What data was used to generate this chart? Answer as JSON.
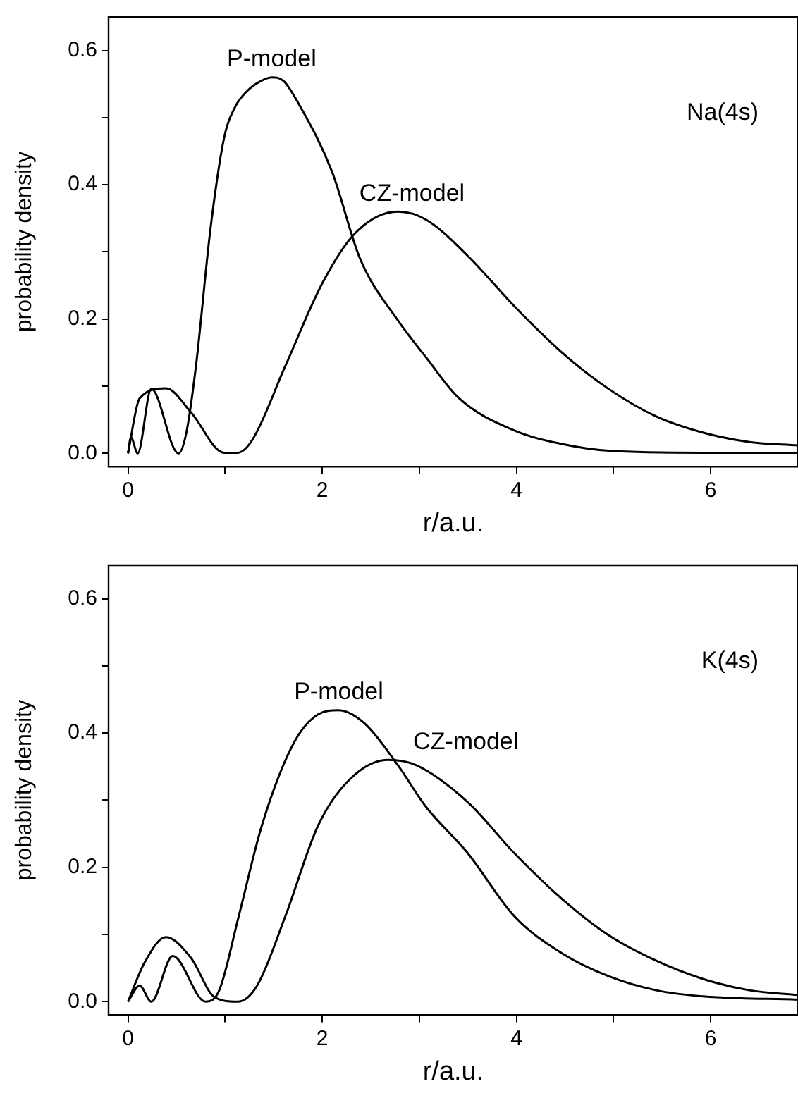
{
  "chart_data": [
    {
      "type": "line",
      "xlabel": "r/a.u.",
      "ylabel": "probability density",
      "annotations": [
        "Na(4s)"
      ],
      "xlim": [
        -0.2,
        6.9
      ],
      "ylim": [
        -0.02,
        0.65
      ],
      "xticks": [
        0,
        {
          "value": 1,
          "label": null
        },
        2,
        {
          "value": 3,
          "label": null
        },
        4,
        {
          "value": 5,
          "label": null
        },
        6
      ],
      "yticks": [
        {
          "value": 0,
          "label": "0.0"
        },
        {
          "value": 0.1,
          "label": null
        },
        {
          "value": 0.2,
          "label": "0.2"
        },
        {
          "value": 0.3,
          "label": null
        },
        {
          "value": 0.4,
          "label": "0.4"
        },
        {
          "value": 0.5,
          "label": null
        },
        {
          "value": 0.6,
          "label": "0.6"
        }
      ],
      "marker": "none",
      "line_style": "solid",
      "grid": false,
      "legend": false,
      "series": [
        {
          "name": "P-model",
          "color": "#000000",
          "x": [
            0,
            0.03,
            0.1,
            0.24,
            0.52,
            0.6,
            0.7,
            0.85,
            0.99,
            1.1,
            1.23,
            1.35,
            1.48,
            1.6,
            1.76,
            2.1,
            2.39,
            2.78,
            3.07,
            3.41,
            3.98,
            4.47,
            4.95,
            5.92,
            6.9
          ],
          "values": [
            0,
            0.024,
            0,
            0.096,
            0,
            0.03,
            0.13,
            0.335,
            0.47,
            0.515,
            0.54,
            0.553,
            0.56,
            0.555,
            0.52,
            0.42,
            0.29,
            0.198,
            0.143,
            0.082,
            0.034,
            0.014,
            0.004,
            0.001,
            0.001
          ]
        },
        {
          "name": "CZ-model",
          "color": "#000000",
          "x": [
            0,
            0.12,
            0.39,
            0.65,
            0.99,
            1.13,
            1.28,
            1.62,
            2.0,
            2.34,
            2.78,
            3.07,
            3.5,
            3.98,
            4.47,
            4.95,
            5.44,
            5.92,
            6.4,
            6.9
          ],
          "values": [
            0,
            0.082,
            0.097,
            0.061,
            0.001,
            0.001,
            0.02,
            0.13,
            0.253,
            0.328,
            0.36,
            0.348,
            0.294,
            0.219,
            0.15,
            0.096,
            0.055,
            0.031,
            0.017,
            0.012
          ]
        }
      ]
    },
    {
      "type": "line",
      "xlabel": "r/a.u.",
      "ylabel": "probability density",
      "annotations": [
        "K(4s)"
      ],
      "xlim": [
        -0.2,
        6.9
      ],
      "ylim": [
        -0.02,
        0.65
      ],
      "xticks": [
        0,
        {
          "value": 1,
          "label": null
        },
        2,
        {
          "value": 3,
          "label": null
        },
        4,
        {
          "value": 5,
          "label": null
        },
        6
      ],
      "yticks": [
        {
          "value": 0,
          "label": "0.0"
        },
        {
          "value": 0.1,
          "label": null
        },
        {
          "value": 0.2,
          "label": "0.2"
        },
        {
          "value": 0.3,
          "label": null
        },
        {
          "value": 0.4,
          "label": "0.4"
        },
        {
          "value": 0.5,
          "label": null
        },
        {
          "value": 0.6,
          "label": "0.6"
        }
      ],
      "marker": "none",
      "line_style": "solid",
      "grid": false,
      "legend": false,
      "series": [
        {
          "name": "P-model",
          "color": "#000000",
          "x": [
            0,
            0.12,
            0.24,
            0.46,
            0.8,
            0.94,
            1.14,
            1.38,
            1.71,
            1.96,
            2.17,
            2.44,
            2.78,
            3.07,
            3.5,
            3.98,
            4.47,
            4.95,
            5.44,
            5.92,
            6.9
          ],
          "values": [
            0,
            0.024,
            0,
            0.068,
            0,
            0.017,
            0.127,
            0.263,
            0.386,
            0.428,
            0.434,
            0.414,
            0.352,
            0.29,
            0.221,
            0.127,
            0.072,
            0.038,
            0.017,
            0.008,
            0.003
          ]
        },
        {
          "name": "CZ-model",
          "color": "#000000",
          "x": [
            0,
            0.17,
            0.39,
            0.65,
            0.89,
            1.13,
            1.33,
            1.62,
            1.96,
            2.29,
            2.68,
            2.97,
            3.5,
            3.98,
            4.47,
            4.95,
            5.44,
            5.92,
            6.4,
            6.9
          ],
          "values": [
            0,
            0.058,
            0.096,
            0.065,
            0.007,
            0,
            0.024,
            0.127,
            0.263,
            0.332,
            0.36,
            0.352,
            0.297,
            0.221,
            0.153,
            0.099,
            0.061,
            0.034,
            0.017,
            0.01
          ]
        }
      ]
    }
  ]
}
